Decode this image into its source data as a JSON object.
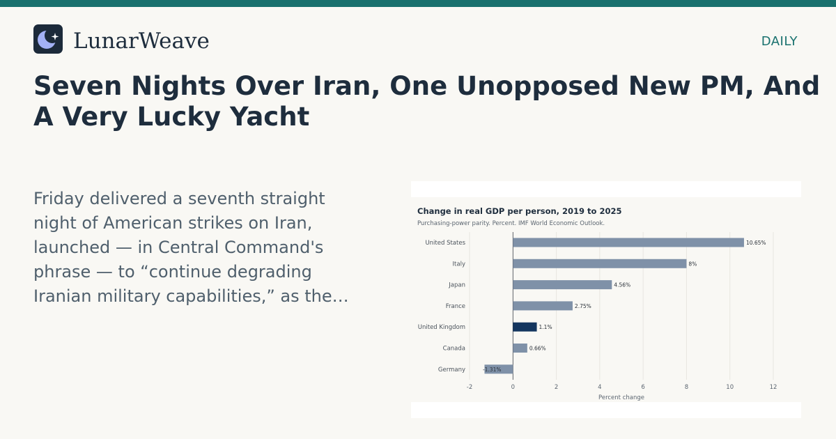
{
  "header": {
    "brand": "LunarWeave",
    "section": "DAILY",
    "logo_icon": "crescent-moon-star-icon"
  },
  "article": {
    "headline": "Seven Nights Over Iran, One Unopposed New PM, And A Very Lucky Yacht",
    "summary": "Friday delivered a seventh straight night of American strikes on Iran, launched — in Central Command's phrase — to “continue degrading Iranian military capabilities,” as the…"
  },
  "colors": {
    "accent": "#19716e",
    "bar_default": "#7f91a8",
    "bar_highlight": "#14365f",
    "text_dark": "#1e2d3d"
  },
  "chart_data": {
    "type": "bar",
    "orientation": "horizontal",
    "title": "Change in real GDP per person, 2019 to 2025",
    "subtitle": "Purchasing-power parity. Percent. IMF World Economic Outlook.",
    "xlabel": "Percent change",
    "xlim": [
      -2,
      12
    ],
    "xticks": [
      -2,
      0,
      2,
      4,
      6,
      8,
      10,
      12
    ],
    "grid": "vertical",
    "highlight": "United Kingdom",
    "categories": [
      "United States",
      "Italy",
      "Japan",
      "France",
      "United Kingdom",
      "Canada",
      "Germany"
    ],
    "values": [
      10.65,
      8,
      4.56,
      2.75,
      1.1,
      0.66,
      -1.31
    ],
    "value_labels": [
      "10.65%",
      "8%",
      "4.56%",
      "2.75%",
      "1.1%",
      "0.66%",
      "-1.31%"
    ]
  }
}
